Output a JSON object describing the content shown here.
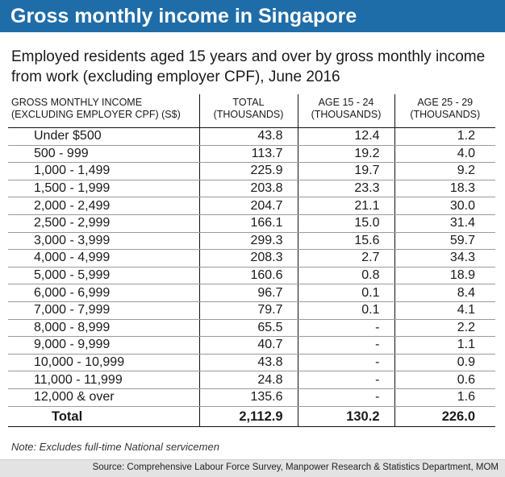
{
  "colors": {
    "header_bg": "#1f6da8",
    "header_text": "#ffffff",
    "footer_bg": "#e3e3e3"
  },
  "header": {
    "title": "Gross monthly income in Singapore"
  },
  "subtitle": "Employed residents aged 15 years and over by gross monthly income from work (excluding employer CPF), June 2016",
  "table": {
    "columns": [
      {
        "line1": "GROSS MONTHLY INCOME",
        "line2": "(EXCLUDING EMPLOYER CPF) (S$)"
      },
      {
        "line1": "TOTAL",
        "line2": "(THOUSANDS)"
      },
      {
        "line1": "AGE 15 - 24",
        "line2": "(THOUSANDS)"
      },
      {
        "line1": "AGE 25 - 29",
        "line2": "(THOUSANDS)"
      }
    ],
    "rows": [
      {
        "income": "Under  $500",
        "total": "43.8",
        "age_15_24": "12.4",
        "age_25_29": "1.2"
      },
      {
        "income": "500 - 999",
        "total": "113.7",
        "age_15_24": "19.2",
        "age_25_29": "4.0"
      },
      {
        "income": "1,000 - 1,499",
        "total": "225.9",
        "age_15_24": "19.7",
        "age_25_29": "9.2"
      },
      {
        "income": "1,500 - 1,999",
        "total": "203.8",
        "age_15_24": "23.3",
        "age_25_29": "18.3"
      },
      {
        "income": "2,000 - 2,499",
        "total": "204.7",
        "age_15_24": "21.1",
        "age_25_29": "30.0"
      },
      {
        "income": "2,500 - 2,999",
        "total": "166.1",
        "age_15_24": "15.0",
        "age_25_29": "31.4"
      },
      {
        "income": "3,000 - 3,999",
        "total": "299.3",
        "age_15_24": "15.6",
        "age_25_29": "59.7"
      },
      {
        "income": "4,000 - 4,999",
        "total": "208.3",
        "age_15_24": "2.7",
        "age_25_29": "34.3"
      },
      {
        "income": "5,000 - 5,999",
        "total": "160.6",
        "age_15_24": "0.8",
        "age_25_29": "18.9"
      },
      {
        "income": "6,000 - 6,999",
        "total": "96.7",
        "age_15_24": "0.1",
        "age_25_29": "8.4"
      },
      {
        "income": "7,000 - 7,999",
        "total": "79.7",
        "age_15_24": "0.1",
        "age_25_29": "4.1"
      },
      {
        "income": "8,000 - 8,999",
        "total": "65.5",
        "age_15_24": "-",
        "age_25_29": "2.2"
      },
      {
        "income": "9,000 - 9,999",
        "total": "40.7",
        "age_15_24": "-",
        "age_25_29": "1.1"
      },
      {
        "income": "10,000 - 10,999",
        "total": "43.8",
        "age_15_24": "-",
        "age_25_29": "0.9"
      },
      {
        "income": "11,000 - 11,999",
        "total": "24.8",
        "age_15_24": "-",
        "age_25_29": "0.6"
      },
      {
        "income": "12,000 & over",
        "total": "135.6",
        "age_15_24": "-",
        "age_25_29": "1.6"
      }
    ],
    "total_row": {
      "income": "Total",
      "total": "2,112.9",
      "age_15_24": "130.2",
      "age_25_29": "226.0"
    }
  },
  "note": "Note: Excludes full-time National servicemen",
  "source": "Source: Comprehensive Labour Force Survey, Manpower Research & Statistics Department, MOM",
  "chart_data": {
    "type": "table",
    "title": "Gross monthly income in Singapore",
    "subtitle": "Employed residents aged 15 years and over by gross monthly income from work (excluding employer CPF), June 2016",
    "categories": [
      "Under  $500",
      "500 - 999",
      "1,000 - 1,499",
      "1,500 - 1,999",
      "2,000 - 2,499",
      "2,500 - 2,999",
      "3,000 - 3,999",
      "4,000 - 4,999",
      "5,000 - 5,999",
      "6,000 - 6,999",
      "7,000 - 7,999",
      "8,000 - 8,999",
      "9,000 - 9,999",
      "10,000 - 10,999",
      "11,000 - 11,999",
      "12,000 & over"
    ],
    "series": [
      {
        "name": "TOTAL (THOUSANDS)",
        "values": [
          43.8,
          113.7,
          225.9,
          203.8,
          204.7,
          166.1,
          299.3,
          208.3,
          160.6,
          96.7,
          79.7,
          65.5,
          40.7,
          43.8,
          24.8,
          135.6
        ]
      },
      {
        "name": "AGE 15 - 24 (THOUSANDS)",
        "values": [
          12.4,
          19.2,
          19.7,
          23.3,
          21.1,
          15.0,
          15.6,
          2.7,
          0.8,
          0.1,
          0.1,
          null,
          null,
          null,
          null,
          null
        ]
      },
      {
        "name": "AGE 25 - 29 (THOUSANDS)",
        "values": [
          1.2,
          4.0,
          9.2,
          18.3,
          30.0,
          31.4,
          59.7,
          34.3,
          18.9,
          8.4,
          4.1,
          2.2,
          1.1,
          0.9,
          0.6,
          1.6
        ]
      }
    ],
    "totals": {
      "TOTAL (THOUSANDS)": 2112.9,
      "AGE 15 - 24 (THOUSANDS)": 130.2,
      "AGE 25 - 29 (THOUSANDS)": 226.0
    },
    "xlabel": "GROSS MONTHLY INCOME (EXCLUDING EMPLOYER CPF) (S$)",
    "ylabel": "THOUSANDS"
  }
}
